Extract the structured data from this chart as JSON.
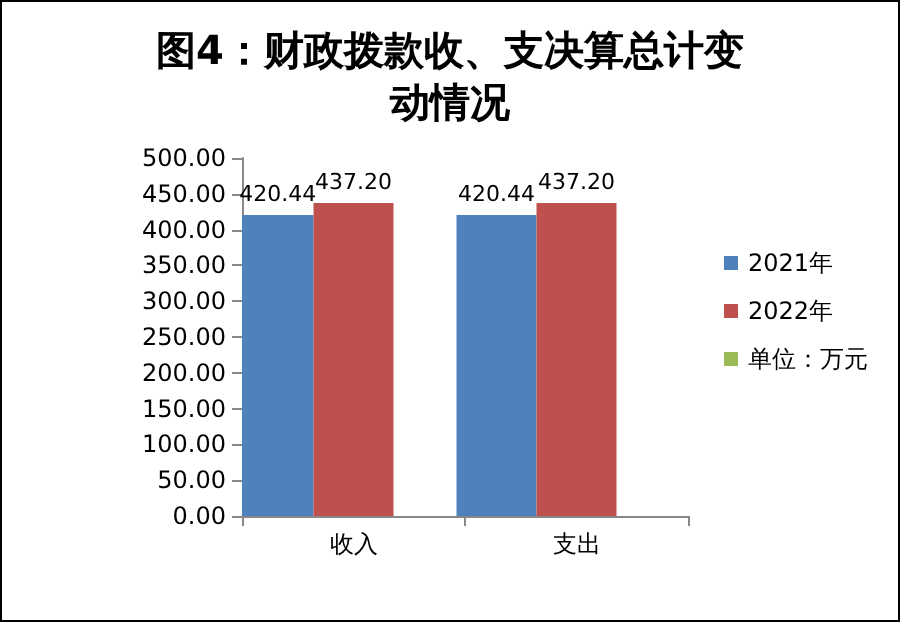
{
  "chart_data": {
    "type": "bar",
    "title": "图4：财政拨款收、支决算总计变动情况",
    "categories": [
      "收入",
      "支出"
    ],
    "series": [
      {
        "name": "2021年",
        "color": "#4f81bd",
        "values": [
          420.44,
          420.44
        ],
        "value_labels": [
          "420.44",
          "420.44"
        ]
      },
      {
        "name": "2022年",
        "color": "#c0504d",
        "values": [
          437.2,
          437.2
        ],
        "value_labels": [
          "437.20",
          "437.20"
        ]
      },
      {
        "name": "单位：万元",
        "color": "#9bbb59",
        "values": [
          null,
          null
        ]
      }
    ],
    "ylim": [
      0,
      500
    ],
    "yticks": [
      {
        "value": 0,
        "label": "0.00"
      },
      {
        "value": 50,
        "label": "50.00"
      },
      {
        "value": 100,
        "label": "100.00"
      },
      {
        "value": 150,
        "label": "150.00"
      },
      {
        "value": 200,
        "label": "200.00"
      },
      {
        "value": 250,
        "label": "250.00"
      },
      {
        "value": 300,
        "label": "300.00"
      },
      {
        "value": 350,
        "label": "350.00"
      },
      {
        "value": 400,
        "label": "400.00"
      },
      {
        "value": 450,
        "label": "450.00"
      },
      {
        "value": 500,
        "label": "500.00"
      }
    ],
    "grid": false,
    "legend": "right"
  }
}
